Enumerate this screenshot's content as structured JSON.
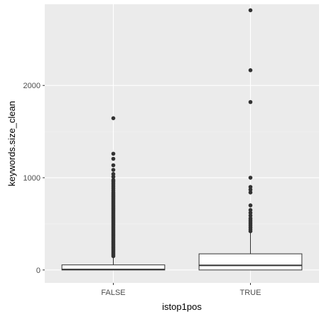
{
  "chart_data": {
    "type": "boxplot",
    "title": "",
    "xlabel": "istop1pos",
    "ylabel": "keywords.size_clean",
    "categories": [
      "FALSE",
      "TRUE"
    ],
    "ylim": [
      -140,
      2880
    ],
    "y_ticks": [
      0,
      1000,
      2000
    ],
    "y_tick_labels": [
      "0",
      "1000",
      "2000"
    ],
    "grid": true,
    "legend": "none",
    "boxes": [
      {
        "category": "FALSE",
        "whisker_low": 0,
        "q1": 0,
        "median": 5,
        "q3": 55,
        "whisker_high": 140,
        "outliers": [
          150,
          165,
          180,
          195,
          210,
          225,
          240,
          255,
          270,
          285,
          300,
          315,
          330,
          345,
          360,
          375,
          390,
          405,
          420,
          435,
          450,
          465,
          480,
          495,
          510,
          525,
          540,
          555,
          570,
          585,
          600,
          615,
          630,
          645,
          660,
          675,
          690,
          705,
          720,
          735,
          750,
          765,
          780,
          795,
          810,
          825,
          840,
          860,
          880,
          900,
          920,
          940,
          960,
          975,
          1010,
          1040,
          1085,
          1135,
          1205,
          1260,
          1645
        ]
      },
      {
        "category": "TRUE",
        "whisker_low": 0,
        "q1": 0,
        "median": 50,
        "q3": 175,
        "whisker_high": 400,
        "outliers": [
          420,
          440,
          460,
          480,
          500,
          520,
          540,
          560,
          590,
          620,
          650,
          700,
          840,
          870,
          900,
          1000,
          1820,
          2165,
          2815
        ]
      }
    ],
    "colors": {
      "panel_background": "#ebebeb",
      "grid_major": "#ffffff",
      "grid_minor": "#f5f5f5",
      "box_fill": "#ffffff",
      "box_stroke": "#333333",
      "point": "#333333",
      "tick_text": "#4d4d4d",
      "title_text": "#000000"
    }
  }
}
